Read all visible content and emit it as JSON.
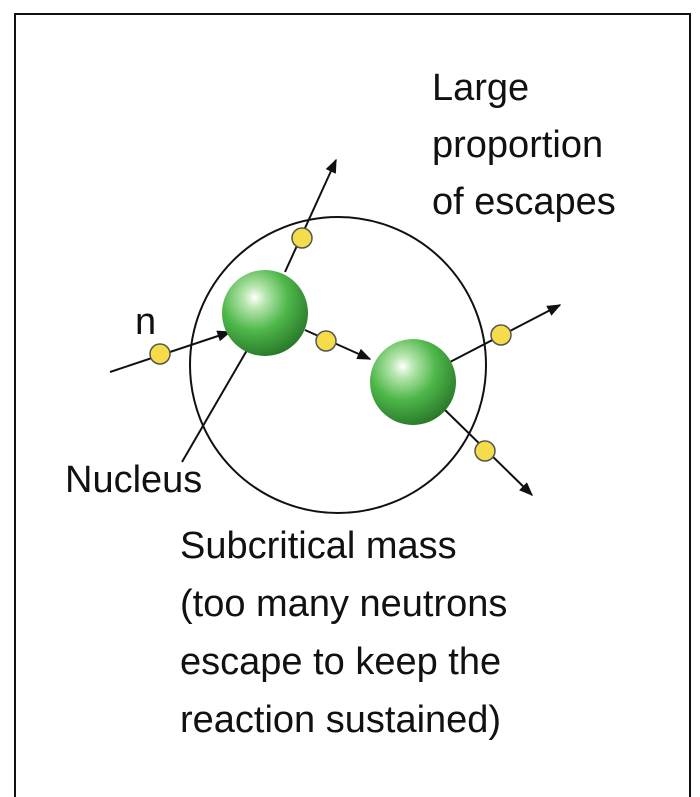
{
  "labels": {
    "escapes": [
      "Large",
      "proportion",
      "of escapes"
    ],
    "neutron": "n",
    "nucleus": "Nucleus",
    "caption": [
      "Subcritical mass",
      "(too many neutrons",
      "escape to keep the",
      "reaction sustained)"
    ]
  }
}
